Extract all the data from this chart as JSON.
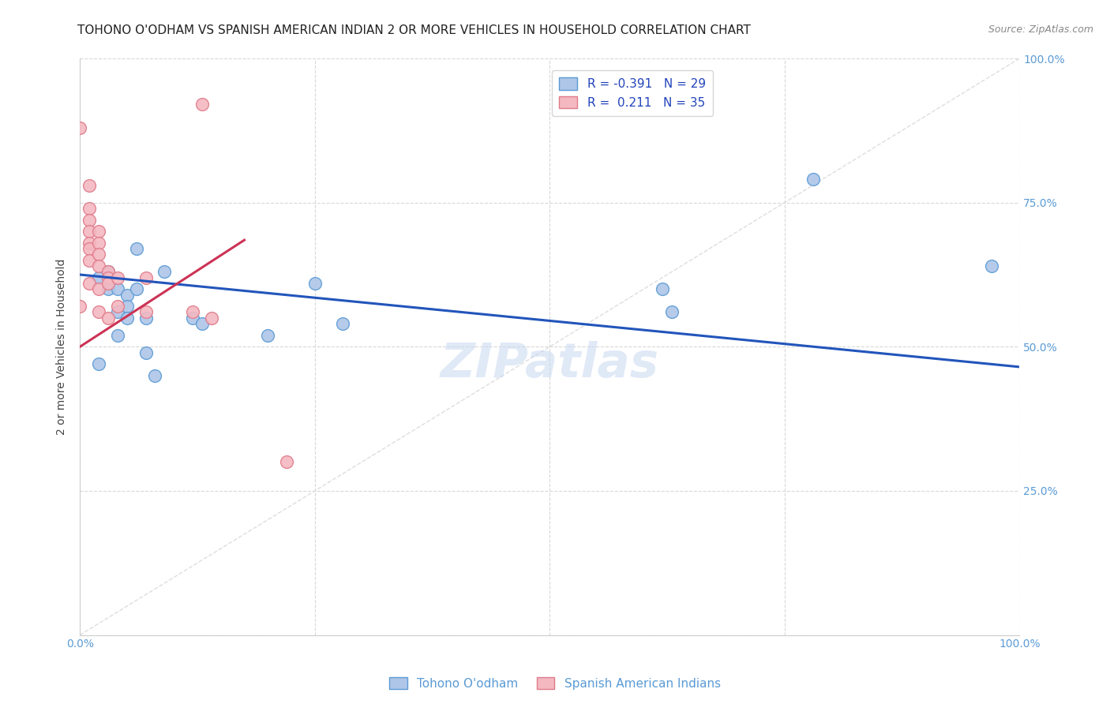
{
  "title": "TOHONO O'ODHAM VS SPANISH AMERICAN INDIAN 2 OR MORE VEHICLES IN HOUSEHOLD CORRELATION CHART",
  "source": "Source: ZipAtlas.com",
  "ylabel": "2 or more Vehicles in Household",
  "xlabel": "",
  "xlim": [
    0,
    1
  ],
  "ylim": [
    0,
    1
  ],
  "xticks": [
    0,
    0.25,
    0.5,
    0.75,
    1.0
  ],
  "yticks": [
    0,
    0.25,
    0.5,
    0.75,
    1.0
  ],
  "xticklabels": [
    "0.0%",
    "",
    "",
    "",
    "100.0%"
  ],
  "yticklabels_right": [
    "",
    "25.0%",
    "50.0%",
    "75.0%",
    "100.0%"
  ],
  "blue_color": "#aec6e8",
  "blue_edge_color": "#5b9bd5",
  "pink_color": "#f4b8c1",
  "pink_edge_color": "#e07b8a",
  "blue_line_color": "#2255bb",
  "pink_line_color": "#cc3355",
  "diagonal_color": "#d0d0d0",
  "legend_blue_label": "R = -0.391   N = 29",
  "legend_pink_label": "R =  0.211   N = 35",
  "bottom_legend_blue": "Tohono O'odham",
  "bottom_legend_pink": "Spanish American Indians",
  "watermark": "ZIPatlas",
  "title_fontsize": 11,
  "label_fontsize": 10,
  "tick_fontsize": 10,
  "blue_scatter_x": [
    0.02,
    0.02,
    0.03,
    0.03,
    0.04,
    0.04,
    0.04,
    0.05,
    0.05,
    0.05,
    0.06,
    0.06,
    0.07,
    0.07,
    0.08,
    0.09,
    0.12,
    0.13,
    0.2,
    0.25,
    0.28,
    0.62,
    0.63,
    0.78,
    0.97
  ],
  "blue_scatter_y": [
    0.62,
    0.47,
    0.63,
    0.6,
    0.6,
    0.56,
    0.52,
    0.59,
    0.57,
    0.55,
    0.67,
    0.6,
    0.55,
    0.49,
    0.45,
    0.63,
    0.55,
    0.54,
    0.52,
    0.61,
    0.54,
    0.6,
    0.56,
    0.79,
    0.64
  ],
  "pink_scatter_x": [
    0.0,
    0.0,
    0.01,
    0.01,
    0.01,
    0.01,
    0.01,
    0.01,
    0.01,
    0.01,
    0.02,
    0.02,
    0.02,
    0.02,
    0.02,
    0.02,
    0.03,
    0.03,
    0.03,
    0.03,
    0.04,
    0.04,
    0.07,
    0.07,
    0.12,
    0.13,
    0.14,
    0.22
  ],
  "pink_scatter_y": [
    0.88,
    0.57,
    0.78,
    0.74,
    0.72,
    0.7,
    0.68,
    0.67,
    0.65,
    0.61,
    0.7,
    0.68,
    0.66,
    0.64,
    0.6,
    0.56,
    0.63,
    0.62,
    0.61,
    0.55,
    0.62,
    0.57,
    0.62,
    0.56,
    0.56,
    0.92,
    0.55,
    0.3
  ],
  "blue_trend_x": [
    0.0,
    1.0
  ],
  "blue_trend_y_start": 0.625,
  "blue_trend_y_end": 0.465,
  "pink_trend_x_start": 0.0,
  "pink_trend_x_end": 0.175,
  "pink_trend_y_start": 0.5,
  "pink_trend_y_end": 0.685
}
